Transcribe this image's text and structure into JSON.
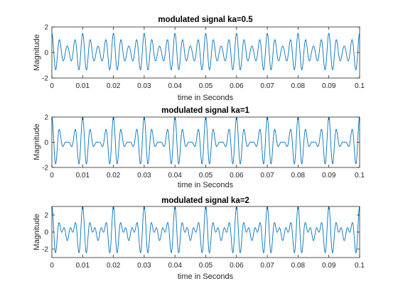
{
  "figure": {
    "background": "#ffffff",
    "line_color": "#0072bd",
    "axes_color": "#262626"
  },
  "chart_data": [
    {
      "type": "line",
      "title": "modulated signal ka=0.5",
      "xlabel": "time in Seconds",
      "ylabel": "Magnitude",
      "xlim": [
        0,
        0.1
      ],
      "ylim": [
        -2,
        2
      ],
      "xticks": [
        "0",
        "0.01",
        "0.02",
        "0.03",
        "0.04",
        "0.05",
        "0.06",
        "0.07",
        "0.08",
        "0.09",
        "0.1"
      ],
      "yticks": [
        "-2",
        "0",
        "2"
      ],
      "grid": false,
      "legend": "none",
      "signal": {
        "expression": "(1 + ka*cos(2*pi*fm*t)) * cos(2*pi*fc*t)",
        "ka": 0.5,
        "carrier_hz": 400,
        "message_hz": 100,
        "peak_amplitude": 1.5,
        "min_envelope": 0.5,
        "t_start": 0,
        "t_end": 0.1
      }
    },
    {
      "type": "line",
      "title": "modulated signal ka=1",
      "xlabel": "time in Seconds",
      "ylabel": "Magnitude",
      "xlim": [
        0,
        0.1
      ],
      "ylim": [
        -2,
        2
      ],
      "xticks": [
        "0",
        "0.01",
        "0.02",
        "0.03",
        "0.04",
        "0.05",
        "0.06",
        "0.07",
        "0.08",
        "0.09",
        "0.1"
      ],
      "yticks": [
        "-2",
        "0",
        "2"
      ],
      "grid": false,
      "legend": "none",
      "signal": {
        "expression": "(1 + ka*cos(2*pi*fm*t)) * cos(2*pi*fc*t)",
        "ka": 1,
        "carrier_hz": 400,
        "message_hz": 100,
        "peak_amplitude": 2,
        "min_envelope": 0,
        "t_start": 0,
        "t_end": 0.1
      }
    },
    {
      "type": "line",
      "title": "modulated signal ka=2",
      "xlabel": "time in Seconds",
      "ylabel": "Magnitude",
      "xlim": [
        0,
        0.1
      ],
      "ylim": [
        -3,
        3
      ],
      "xticks": [
        "0",
        "0.01",
        "0.02",
        "0.03",
        "0.04",
        "0.05",
        "0.06",
        "0.07",
        "0.08",
        "0.09",
        "0.1"
      ],
      "yticks": [
        "-2",
        "0",
        "2"
      ],
      "grid": false,
      "legend": "none",
      "signal": {
        "expression": "(1 + ka*cos(2*pi*fm*t)) * cos(2*pi*fc*t)",
        "ka": 2,
        "carrier_hz": 400,
        "message_hz": 100,
        "peak_amplitude": 3,
        "min_envelope": -1,
        "t_start": 0,
        "t_end": 0.1
      }
    }
  ]
}
